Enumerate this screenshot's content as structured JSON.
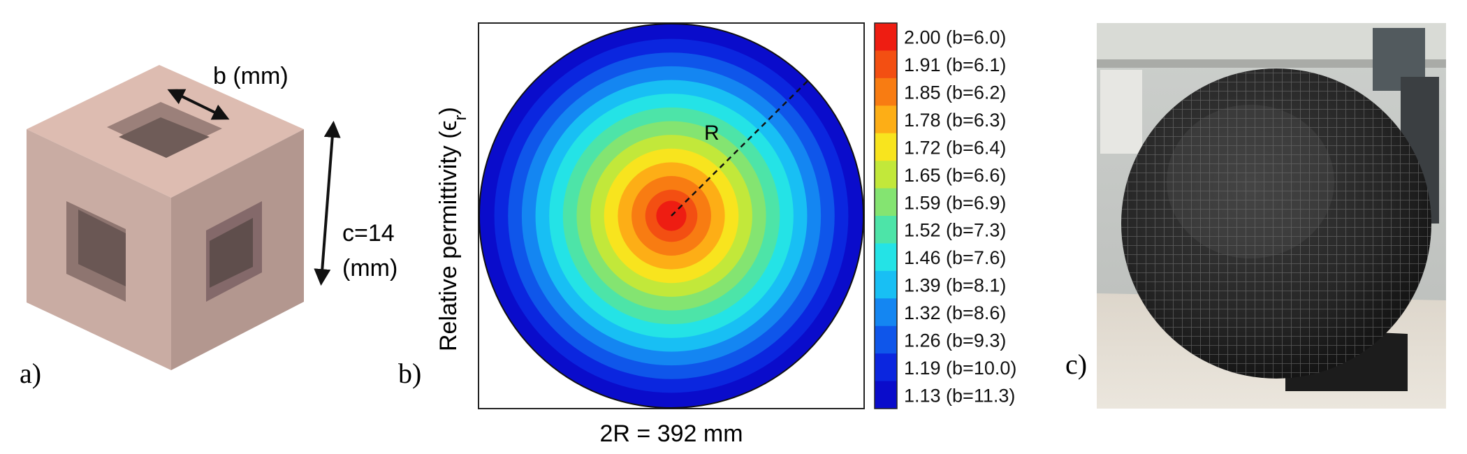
{
  "panel_a": {
    "label": "a)",
    "hole_dim": "b (mm)",
    "cell_dim_line1": "c=14",
    "cell_dim_line2": "(mm)"
  },
  "panel_b": {
    "label": "b)",
    "radius_label": "R",
    "xlabel": "2R = 392 mm",
    "ylabel_main": "Relative permittivity (ϵ",
    "ylabel_sub": "r",
    "ylabel_close": ")",
    "colorbar": [
      {
        "text": "2.00 (b=6.0)",
        "color": "#ee1d12"
      },
      {
        "text": "1.91 (b=6.1)",
        "color": "#f34f12"
      },
      {
        "text": "1.85 (b=6.2)",
        "color": "#f87c12"
      },
      {
        "text": "1.78 (b=6.3)",
        "color": "#fdae16"
      },
      {
        "text": "1.72 (b=6.4)",
        "color": "#f8e41e"
      },
      {
        "text": "1.65 (b=6.6)",
        "color": "#c2e83a"
      },
      {
        "text": "1.59 (b=6.9)",
        "color": "#84e471"
      },
      {
        "text": "1.52 (b=7.3)",
        "color": "#4de4a8"
      },
      {
        "text": "1.46 (b=7.6)",
        "color": "#24e3e6"
      },
      {
        "text": "1.39 (b=8.1)",
        "color": "#18bff4"
      },
      {
        "text": "1.32 (b=8.6)",
        "color": "#1486f2"
      },
      {
        "text": "1.26 (b=9.3)",
        "color": "#0f56ea"
      },
      {
        "text": "1.19 (b=10.0)",
        "color": "#0b26df"
      },
      {
        "text": "1.13 (b=11.3)",
        "color": "#0a0ccb"
      }
    ]
  },
  "panel_c": {
    "label": "c)"
  }
}
